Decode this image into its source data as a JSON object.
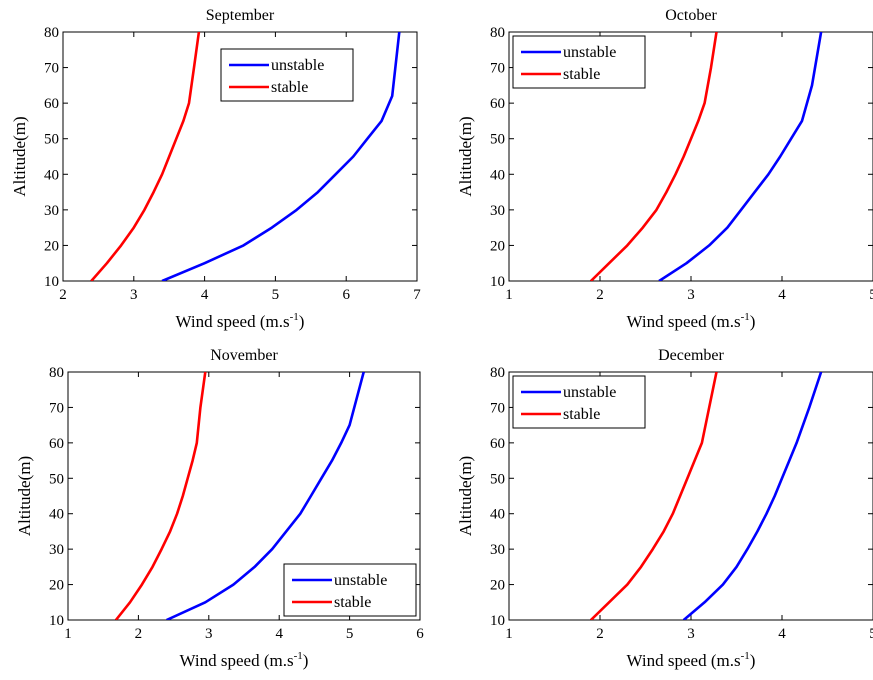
{
  "chart_data": [
    {
      "type": "line",
      "title": "September",
      "xlabel": "Wind speed (m.s",
      "xlabel_sup": "-1",
      "xlabel_close": ")",
      "ylabel": "Altitude(m)",
      "xlim": [
        2,
        7
      ],
      "ylim": [
        10,
        80
      ],
      "xticks": [
        2,
        3,
        4,
        5,
        6,
        7
      ],
      "yticks": [
        10,
        20,
        30,
        40,
        50,
        60,
        70,
        80
      ],
      "legend_position": "top-center",
      "series": [
        {
          "name": "unstable",
          "color": "#0000ff",
          "x": [
            3.4,
            4.0,
            4.55,
            4.95,
            5.3,
            5.6,
            5.85,
            6.1,
            6.3,
            6.5,
            6.65,
            6.75
          ],
          "y": [
            10,
            15,
            20,
            25,
            30,
            35,
            40,
            45,
            50,
            55,
            62,
            80
          ]
        },
        {
          "name": "stable",
          "color": "#ff0000",
          "x": [
            2.4,
            2.62,
            2.82,
            3.0,
            3.15,
            3.28,
            3.4,
            3.5,
            3.6,
            3.7,
            3.78,
            3.85,
            3.92
          ],
          "y": [
            10,
            15,
            20,
            25,
            30,
            35,
            40,
            45,
            50,
            55,
            60,
            70,
            80
          ]
        }
      ]
    },
    {
      "type": "line",
      "title": "October",
      "xlabel": "Wind speed (m.s",
      "xlabel_sup": "-1",
      "xlabel_close": ")",
      "ylabel": "Altitude(m)",
      "xlim": [
        1,
        5
      ],
      "ylim": [
        10,
        80
      ],
      "xticks": [
        1,
        2,
        3,
        4,
        5
      ],
      "yticks": [
        10,
        20,
        30,
        40,
        50,
        60,
        70,
        80
      ],
      "legend_position": "top-left",
      "series": [
        {
          "name": "unstable",
          "color": "#0000ff",
          "x": [
            2.65,
            2.95,
            3.2,
            3.4,
            3.55,
            3.7,
            3.85,
            3.98,
            4.1,
            4.22,
            4.33,
            4.43
          ],
          "y": [
            10,
            15,
            20,
            25,
            30,
            35,
            40,
            45,
            50,
            55,
            65,
            80
          ]
        },
        {
          "name": "stable",
          "color": "#ff0000",
          "x": [
            1.9,
            2.1,
            2.3,
            2.47,
            2.62,
            2.73,
            2.83,
            2.92,
            3.0,
            3.08,
            3.15,
            3.22,
            3.28
          ],
          "y": [
            10,
            15,
            20,
            25,
            30,
            35,
            40,
            45,
            50,
            55,
            60,
            70,
            80
          ]
        }
      ]
    },
    {
      "type": "line",
      "title": "November",
      "xlabel": "Wind speed (m.s",
      "xlabel_sup": "-1",
      "xlabel_close": ")",
      "ylabel": "Altitude(m)",
      "xlim": [
        1,
        6
      ],
      "ylim": [
        10,
        80
      ],
      "xticks": [
        1,
        2,
        3,
        4,
        5,
        6
      ],
      "yticks": [
        10,
        20,
        30,
        40,
        50,
        60,
        70,
        80
      ],
      "legend_position": "bottom-right",
      "series": [
        {
          "name": "unstable",
          "color": "#0000ff",
          "x": [
            2.4,
            2.95,
            3.35,
            3.65,
            3.9,
            4.1,
            4.3,
            4.45,
            4.6,
            4.75,
            4.88,
            5.0,
            5.2
          ],
          "y": [
            10,
            15,
            20,
            25,
            30,
            35,
            40,
            45,
            50,
            55,
            60,
            65,
            80
          ]
        },
        {
          "name": "stable",
          "color": "#ff0000",
          "x": [
            1.68,
            1.88,
            2.05,
            2.2,
            2.33,
            2.45,
            2.55,
            2.63,
            2.7,
            2.77,
            2.83,
            2.88,
            2.95
          ],
          "y": [
            10,
            15,
            20,
            25,
            30,
            35,
            40,
            45,
            50,
            55,
            60,
            70,
            80
          ]
        }
      ]
    },
    {
      "type": "line",
      "title": "December",
      "xlabel": "Wind speed (m.s",
      "xlabel_sup": "-1",
      "xlabel_close": ")",
      "ylabel": "Altitude(m)",
      "xlim": [
        1,
        5
      ],
      "ylim": [
        10,
        80
      ],
      "xticks": [
        1,
        2,
        3,
        4,
        5
      ],
      "yticks": [
        10,
        20,
        30,
        40,
        50,
        60,
        70,
        80
      ],
      "legend_position": "top-left",
      "series": [
        {
          "name": "unstable",
          "color": "#0000ff",
          "x": [
            2.92,
            3.15,
            3.35,
            3.5,
            3.62,
            3.73,
            3.83,
            3.92,
            4.0,
            4.08,
            4.16,
            4.3,
            4.43
          ],
          "y": [
            10,
            15,
            20,
            25,
            30,
            35,
            40,
            45,
            50,
            55,
            60,
            70,
            80
          ]
        },
        {
          "name": "stable",
          "color": "#ff0000",
          "x": [
            1.9,
            2.1,
            2.3,
            2.45,
            2.58,
            2.7,
            2.8,
            2.88,
            2.96,
            3.04,
            3.12,
            3.2,
            3.28
          ],
          "y": [
            10,
            15,
            20,
            25,
            30,
            35,
            40,
            45,
            50,
            55,
            60,
            70,
            80
          ]
        }
      ]
    }
  ]
}
